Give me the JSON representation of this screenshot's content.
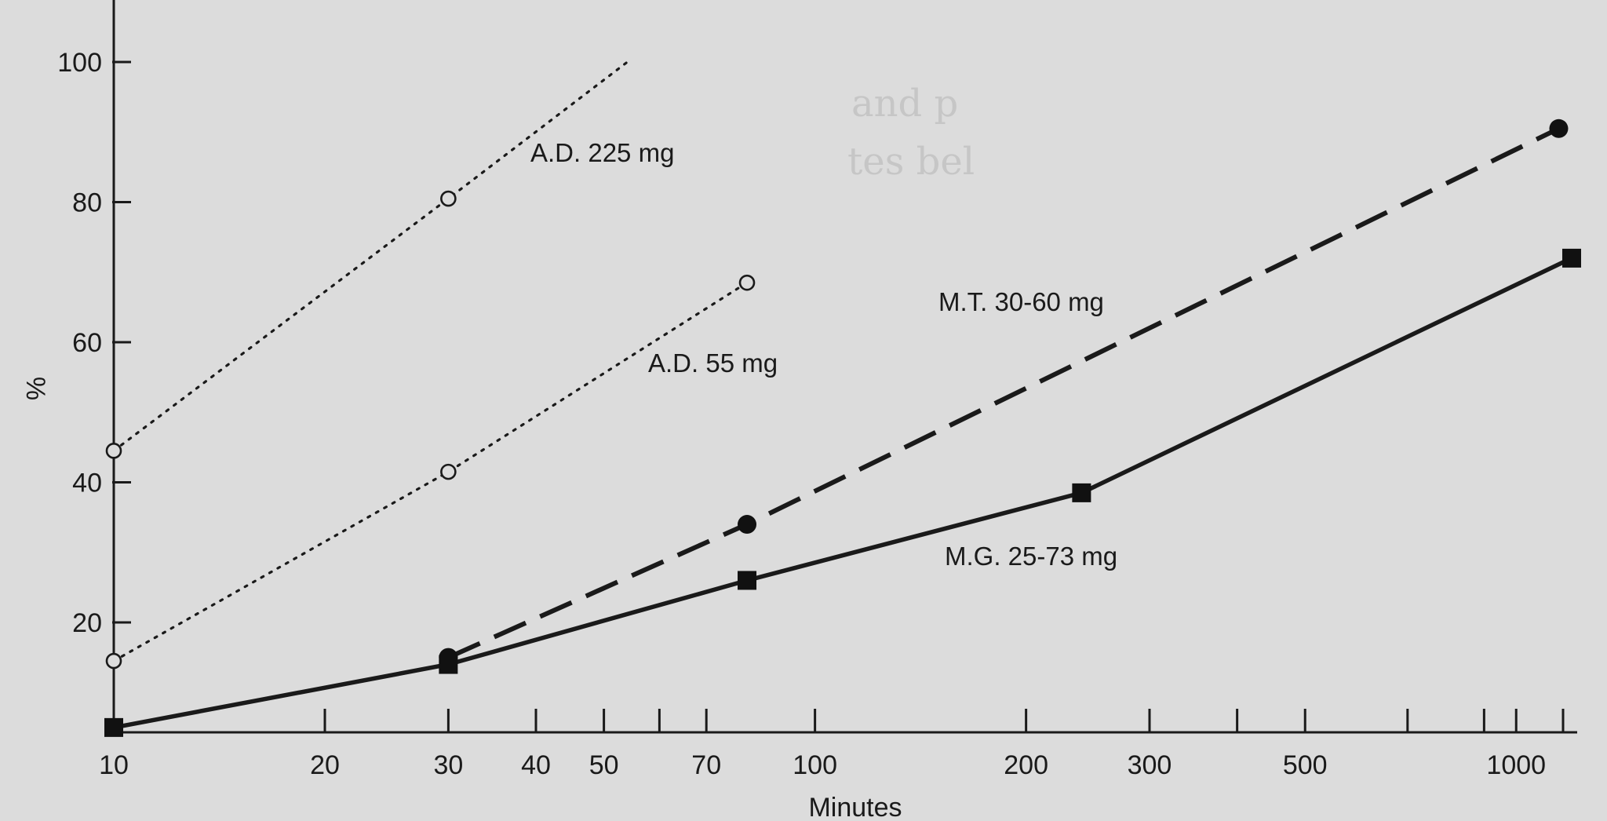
{
  "chart_data": {
    "type": "line",
    "title": "",
    "xlabel": "Minutes",
    "ylabel": "%",
    "xscale": "log",
    "xlim": [
      10,
      1200
    ],
    "ylim": [
      4,
      108
    ],
    "x_ticks": [
      10,
      20,
      30,
      40,
      50,
      70,
      100,
      200,
      300,
      500,
      1000
    ],
    "x_minor_ticks": [
      60,
      400,
      700,
      900
    ],
    "y_ticks": [
      20,
      40,
      60,
      80,
      100
    ],
    "grid": false,
    "legend": "none",
    "series": [
      {
        "name": "A.D. 225 mg",
        "style": "dotted",
        "marker": "open-circle",
        "points": [
          [
            10,
            44.5
          ],
          [
            30,
            80.5
          ]
        ],
        "line_to": [
          54,
          100
        ]
      },
      {
        "name": "A.D. 55 mg",
        "style": "dotted",
        "marker": "open-circle",
        "points": [
          [
            10,
            14.5
          ],
          [
            30,
            41.5
          ],
          [
            80,
            68.5
          ]
        ]
      },
      {
        "name": "M.T. 30-60 mg",
        "style": "dashed",
        "marker": "filled-circle",
        "points": [
          [
            30,
            15
          ],
          [
            80,
            34
          ],
          [
            1150,
            90.5
          ]
        ]
      },
      {
        "name": "M.G. 25-73 mg",
        "style": "solid",
        "marker": "filled-square",
        "points": [
          [
            10,
            5
          ],
          [
            30,
            14
          ],
          [
            80,
            26
          ],
          [
            240,
            38.5
          ],
          [
            1200,
            72
          ]
        ]
      }
    ]
  },
  "background_text": [
    "and p",
    "tes bel"
  ]
}
